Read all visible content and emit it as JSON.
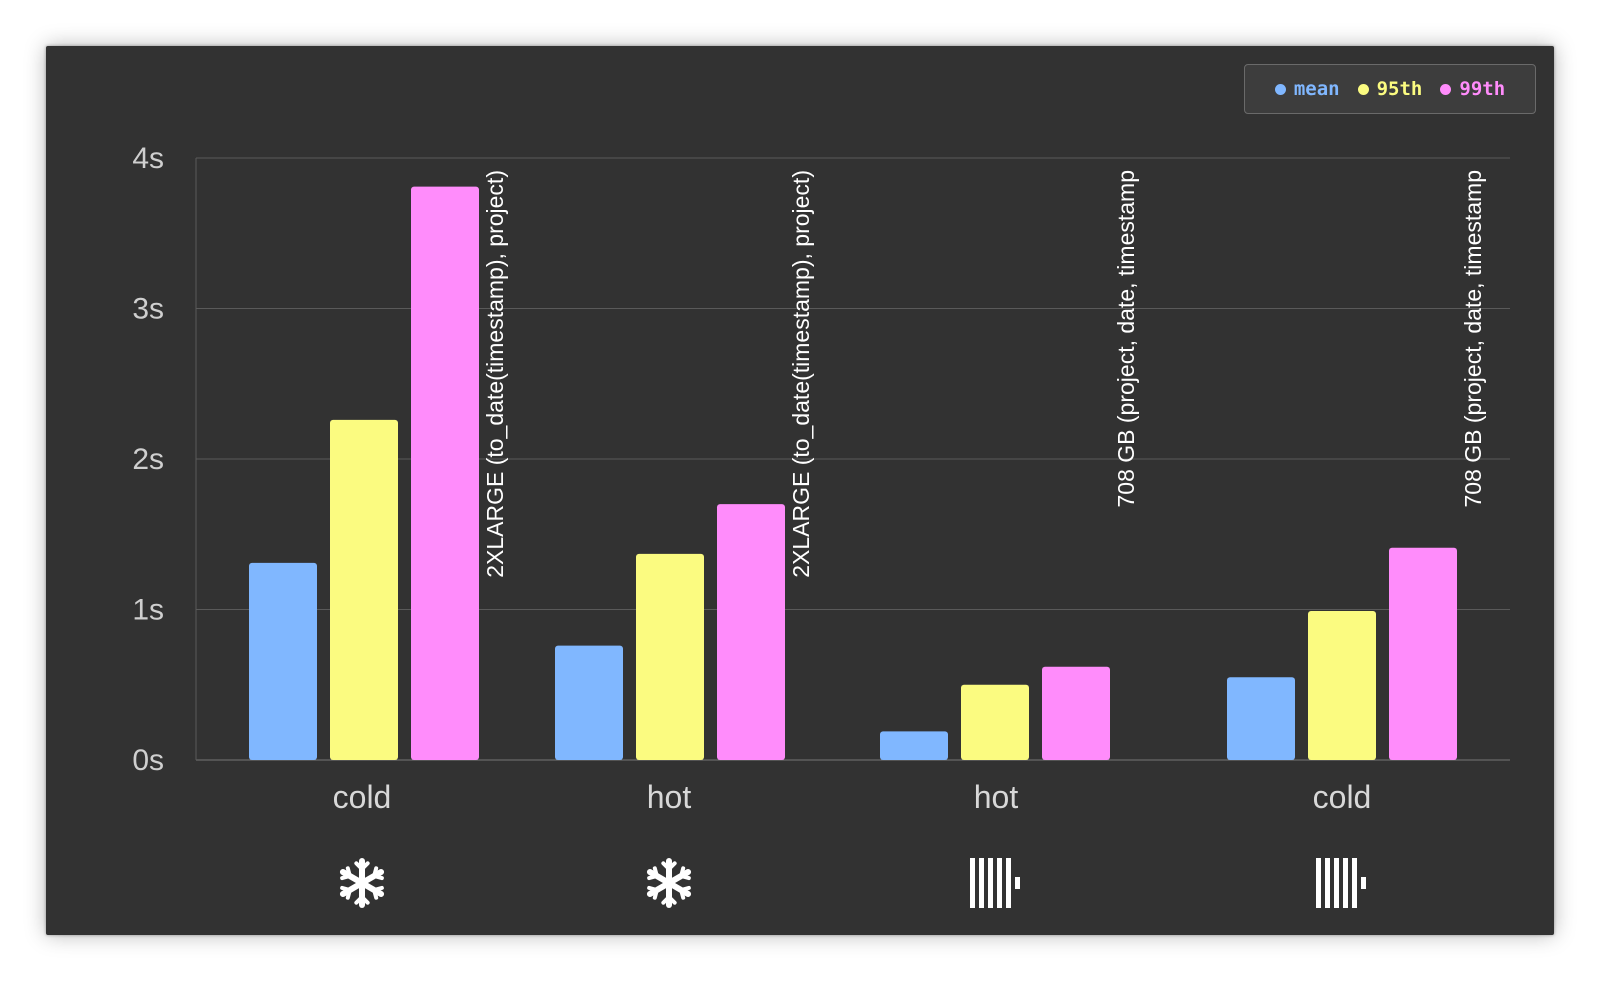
{
  "chart_data": {
    "type": "bar",
    "categories": [
      "cold",
      "hot",
      "hot",
      "cold"
    ],
    "series": [
      {
        "name": "mean",
        "color": "#80b7ff",
        "values": [
          1.31,
          0.76,
          0.19,
          0.55
        ]
      },
      {
        "name": "95th",
        "color": "#fbfb80",
        "values": [
          2.26,
          1.37,
          0.5,
          0.99
        ]
      },
      {
        "name": "99th",
        "color": "#ff8cfb",
        "values": [
          3.81,
          1.7,
          0.62,
          1.41
        ]
      }
    ],
    "group_annotations": [
      "2XLARGE (to_date(timestamp), project)",
      "2XLARGE (to_date(timestamp), project)",
      "708 GB (project, date, timestamp",
      "708 GB (project, date, timestamp"
    ],
    "group_icons": [
      "snowflake-icon",
      "snowflake-icon",
      "clickhouse-icon",
      "clickhouse-icon"
    ],
    "yticks": [
      0,
      1,
      2,
      3,
      4
    ],
    "ytick_labels": [
      "0s",
      "1s",
      "2s",
      "3s",
      "4s"
    ],
    "ylim": [
      0,
      4
    ],
    "grid": true,
    "legend_position": "top-right",
    "xlabel": "",
    "ylabel": "",
    "colors": {
      "background": "#323232",
      "grid": "#5a5a5a",
      "text": "#dcdcdc"
    }
  }
}
